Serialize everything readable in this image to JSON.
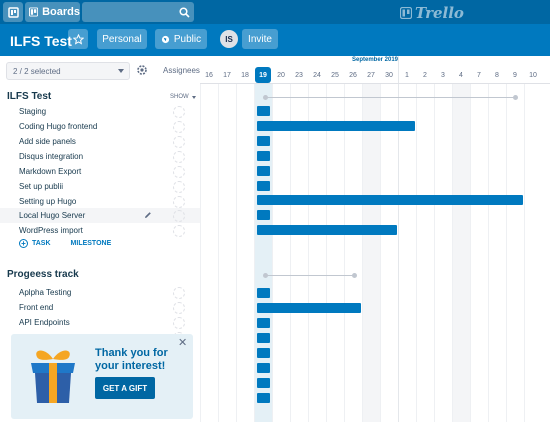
{
  "header": {
    "boards_label": "Boards",
    "logo_text": "Trello"
  },
  "board": {
    "title": "ILFS Test",
    "visibility_personal": "Personal",
    "visibility_public": "Public",
    "avatar_initials": "IS",
    "invite_label": "Invite"
  },
  "sidebar": {
    "selector_value": "2 / 2 selected",
    "assignees_header": "Assignees",
    "show_label": "SHOW"
  },
  "groups": [
    {
      "title": "ILFS Test",
      "tasks": [
        "Staging",
        "Coding Hugo frontend",
        "Add side panels",
        "Disqus integration",
        "Markdown Export",
        "Set up publii",
        "Setting up Hugo",
        "Local Hugo Server",
        "WordPress import"
      ],
      "add_task": "TASK",
      "add_milestone": "MILESTONE"
    },
    {
      "title": "Progeess track",
      "tasks": [
        "Aplpha Testing",
        "Front end",
        "API Endpoints"
      ]
    }
  ],
  "timeline": {
    "month": "September 2019",
    "days": [
      "16",
      "17",
      "18",
      "19",
      "20",
      "23",
      "24",
      "25",
      "26",
      "27",
      "30",
      "1",
      "2",
      "3",
      "4",
      "7",
      "8",
      "9",
      "10"
    ],
    "today": "19"
  },
  "banner": {
    "text": "Thank you for your interest!",
    "button": "GET A GIFT"
  },
  "colors": {
    "topbar": "#0067a3",
    "boardbar": "#0079bf",
    "bar": "#0079bf"
  }
}
